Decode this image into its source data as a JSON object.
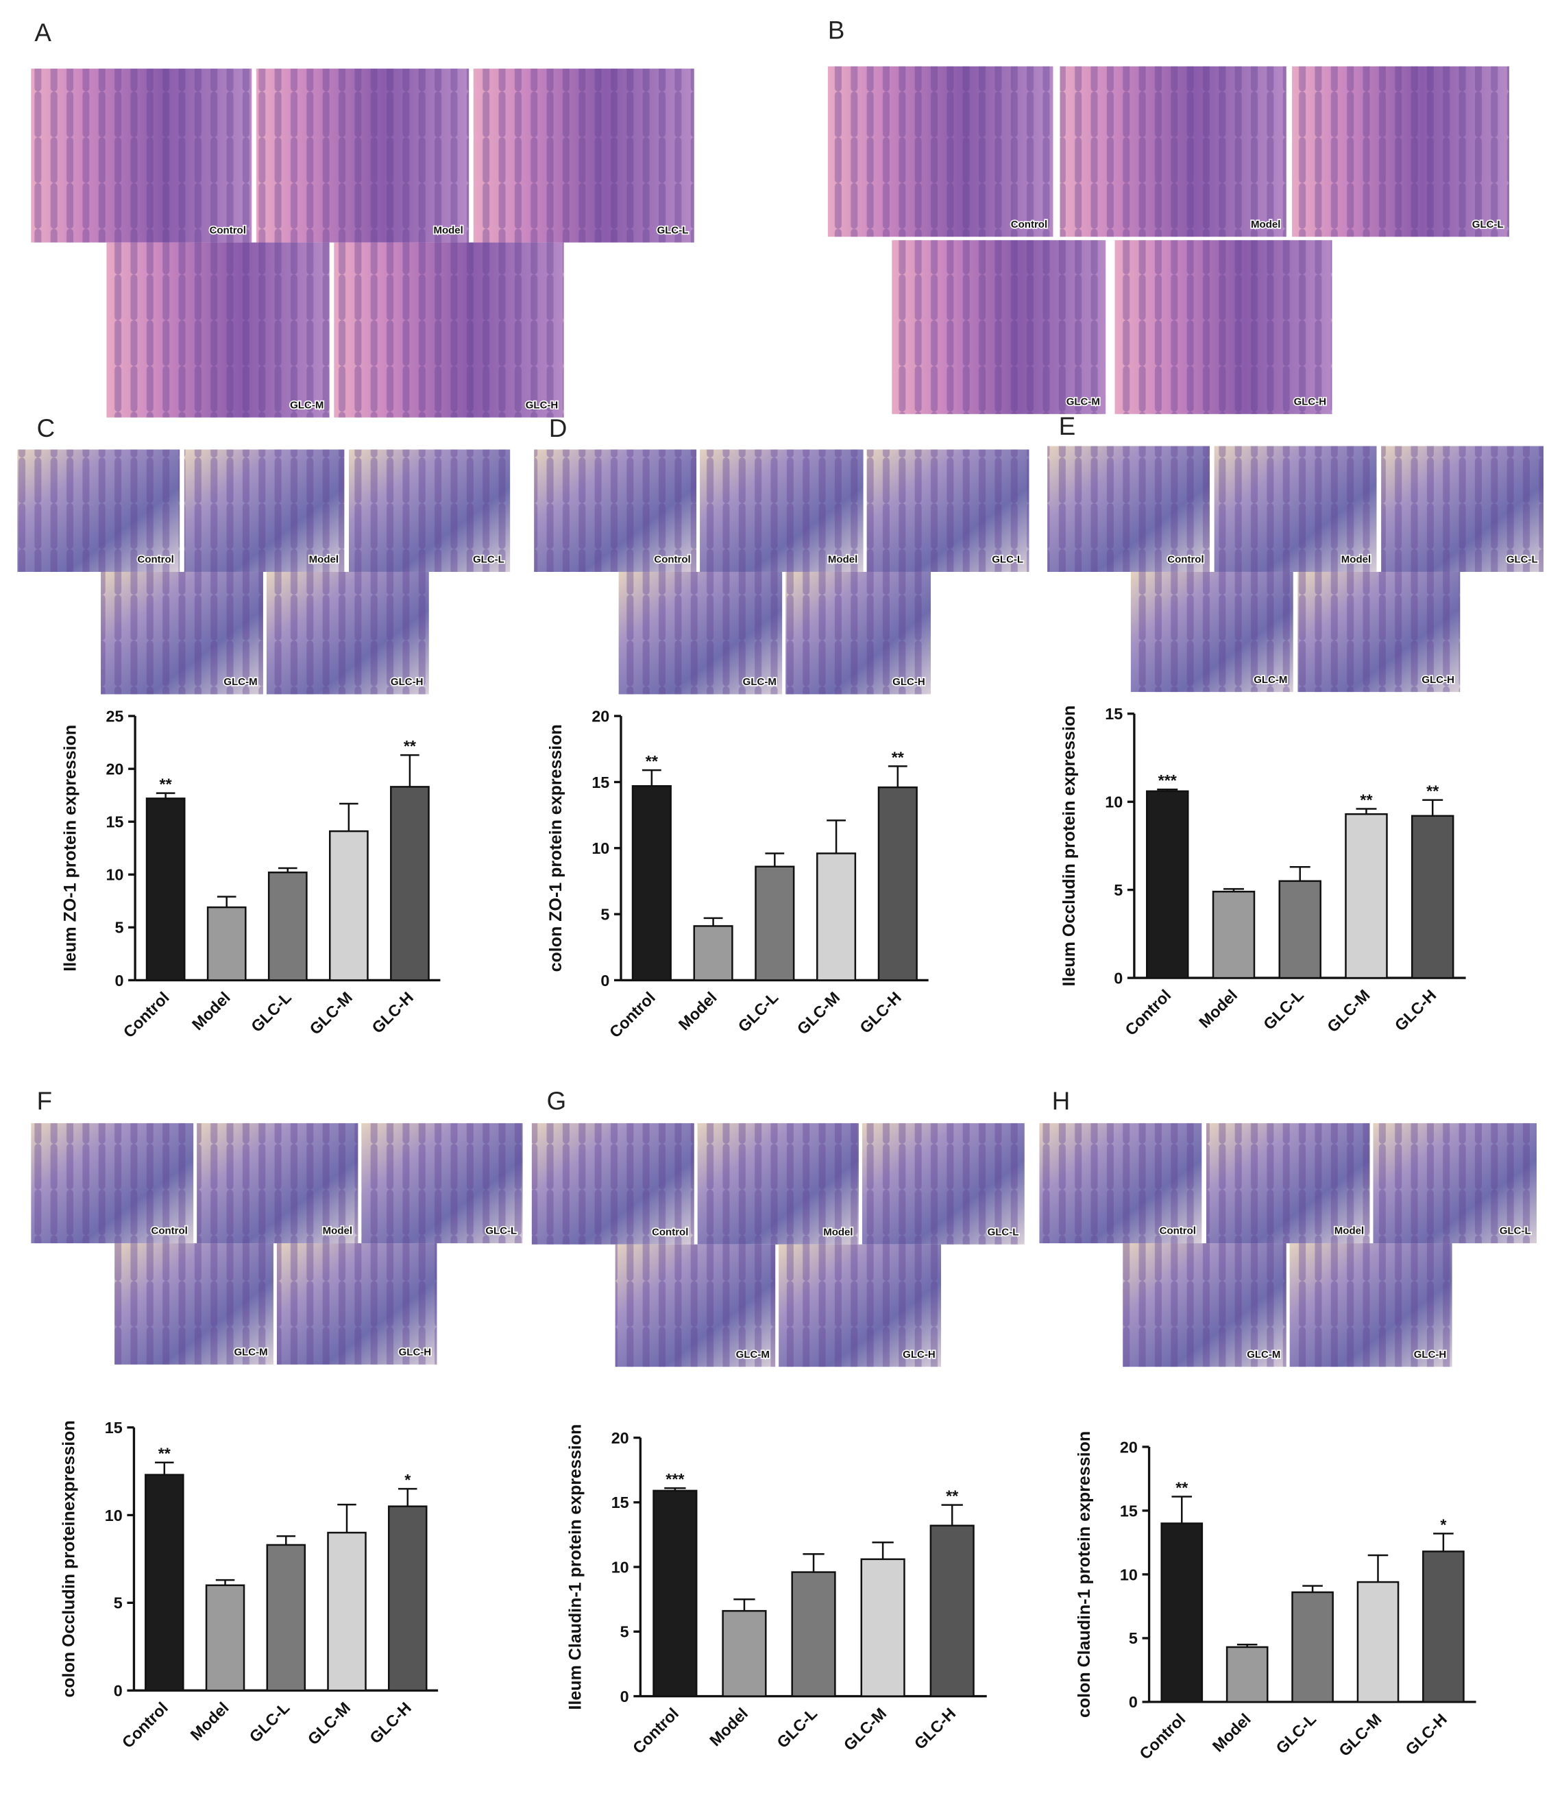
{
  "figure": {
    "panels": [
      {
        "letter": "A",
        "images": [
          "Control",
          "Model",
          "GLC-L",
          "GLC-M",
          "GLC-H"
        ]
      },
      {
        "letter": "B",
        "images": [
          "Control",
          "Model",
          "GLC-L",
          "GLC-M",
          "GLC-H"
        ]
      },
      {
        "letter": "C",
        "images": [
          "Control",
          "Model",
          "GLC-L",
          "GLC-M",
          "GLC-H"
        ]
      },
      {
        "letter": "D",
        "images": [
          "Control",
          "Model",
          "GLC-L",
          "GLC-M",
          "GLC-H"
        ]
      },
      {
        "letter": "E",
        "images": [
          "Control",
          "Model",
          "GLC-L",
          "GLC-M",
          "GLC-H"
        ]
      },
      {
        "letter": "F",
        "images": [
          "Control",
          "Model",
          "GLC-L",
          "GLC-M",
          "GLC-H"
        ]
      },
      {
        "letter": "G",
        "images": [
          "Control",
          "Model",
          "GLC-L",
          "GLC-M",
          "GLC-H"
        ]
      },
      {
        "letter": "H",
        "images": [
          "Control",
          "Model",
          "GLC-L",
          "GLC-M",
          "GLC-H"
        ]
      }
    ]
  },
  "chart_data": [
    {
      "type": "bar",
      "ylabel": "Ileum ZO-1 protein expression",
      "categories": [
        "Control",
        "Model",
        "GLC-L",
        "GLC-M",
        "GLC-H"
      ],
      "values": [
        17.2,
        6.9,
        10.2,
        14.1,
        18.3
      ],
      "errors": [
        0.5,
        1.0,
        0.4,
        2.6,
        3.0
      ],
      "annotations": [
        "**",
        null,
        null,
        null,
        "**"
      ],
      "colors": [
        "#1c1c1c",
        "#9b9b9b",
        "#7a7a7a",
        "#d2d2d2",
        "#565656"
      ],
      "ylim": [
        0,
        25
      ],
      "yticks": [
        0,
        5,
        10,
        15,
        20,
        25
      ]
    },
    {
      "type": "bar",
      "ylabel": "colon ZO-1 protein expression",
      "categories": [
        "Control",
        "Model",
        "GLC-L",
        "GLC-M",
        "GLC-H"
      ],
      "values": [
        14.7,
        4.1,
        8.6,
        9.6,
        14.6
      ],
      "errors": [
        1.2,
        0.6,
        1.0,
        2.5,
        1.6
      ],
      "annotations": [
        "**",
        null,
        null,
        null,
        "**"
      ],
      "colors": [
        "#1c1c1c",
        "#9b9b9b",
        "#7a7a7a",
        "#d2d2d2",
        "#565656"
      ],
      "ylim": [
        0,
        20
      ],
      "yticks": [
        0,
        5,
        10,
        15,
        20
      ]
    },
    {
      "type": "bar",
      "ylabel": "Ileum Occludin protein expression",
      "categories": [
        "Control",
        "Model",
        "GLC-L",
        "GLC-M",
        "GLC-H"
      ],
      "values": [
        10.6,
        4.9,
        5.5,
        9.3,
        9.2
      ],
      "errors": [
        0.1,
        0.15,
        0.8,
        0.3,
        0.9
      ],
      "annotations": [
        "***",
        null,
        null,
        "**",
        "**"
      ],
      "colors": [
        "#1c1c1c",
        "#9b9b9b",
        "#7a7a7a",
        "#d2d2d2",
        "#565656"
      ],
      "ylim": [
        0,
        15
      ],
      "yticks": [
        0,
        5,
        10,
        15
      ]
    },
    {
      "type": "bar",
      "ylabel": "colon Occludin proteinexpression",
      "categories": [
        "Control",
        "Model",
        "GLC-L",
        "GLC-M",
        "GLC-H"
      ],
      "values": [
        12.3,
        6.0,
        8.3,
        9.0,
        10.5
      ],
      "errors": [
        0.7,
        0.3,
        0.5,
        1.6,
        1.0
      ],
      "annotations": [
        "**",
        null,
        null,
        null,
        "*"
      ],
      "colors": [
        "#1c1c1c",
        "#9b9b9b",
        "#7a7a7a",
        "#d2d2d2",
        "#565656"
      ],
      "ylim": [
        0,
        15
      ],
      "yticks": [
        0,
        5,
        10,
        15
      ]
    },
    {
      "type": "bar",
      "ylabel": "Ileum Claudin-1 protein expression",
      "categories": [
        "Control",
        "Model",
        "GLC-L",
        "GLC-M",
        "GLC-H"
      ],
      "values": [
        15.9,
        6.6,
        9.6,
        10.6,
        13.2
      ],
      "errors": [
        0.2,
        0.9,
        1.4,
        1.3,
        1.6
      ],
      "annotations": [
        "***",
        null,
        null,
        null,
        "**"
      ],
      "colors": [
        "#1c1c1c",
        "#9b9b9b",
        "#7a7a7a",
        "#d2d2d2",
        "#565656"
      ],
      "ylim": [
        0,
        20
      ],
      "yticks": [
        0,
        5,
        10,
        15,
        20
      ]
    },
    {
      "type": "bar",
      "ylabel": "colon Claudin-1 protein expression",
      "categories": [
        "Control",
        "Model",
        "GLC-L",
        "GLC-M",
        "GLC-H"
      ],
      "values": [
        14.0,
        4.3,
        8.6,
        9.4,
        11.8
      ],
      "errors": [
        2.1,
        0.2,
        0.5,
        2.1,
        1.4
      ],
      "annotations": [
        "**",
        null,
        null,
        null,
        "*"
      ],
      "colors": [
        "#1c1c1c",
        "#9b9b9b",
        "#7a7a7a",
        "#d2d2d2",
        "#565656"
      ],
      "ylim": [
        0,
        20
      ],
      "yticks": [
        0,
        5,
        10,
        15,
        20
      ]
    }
  ]
}
